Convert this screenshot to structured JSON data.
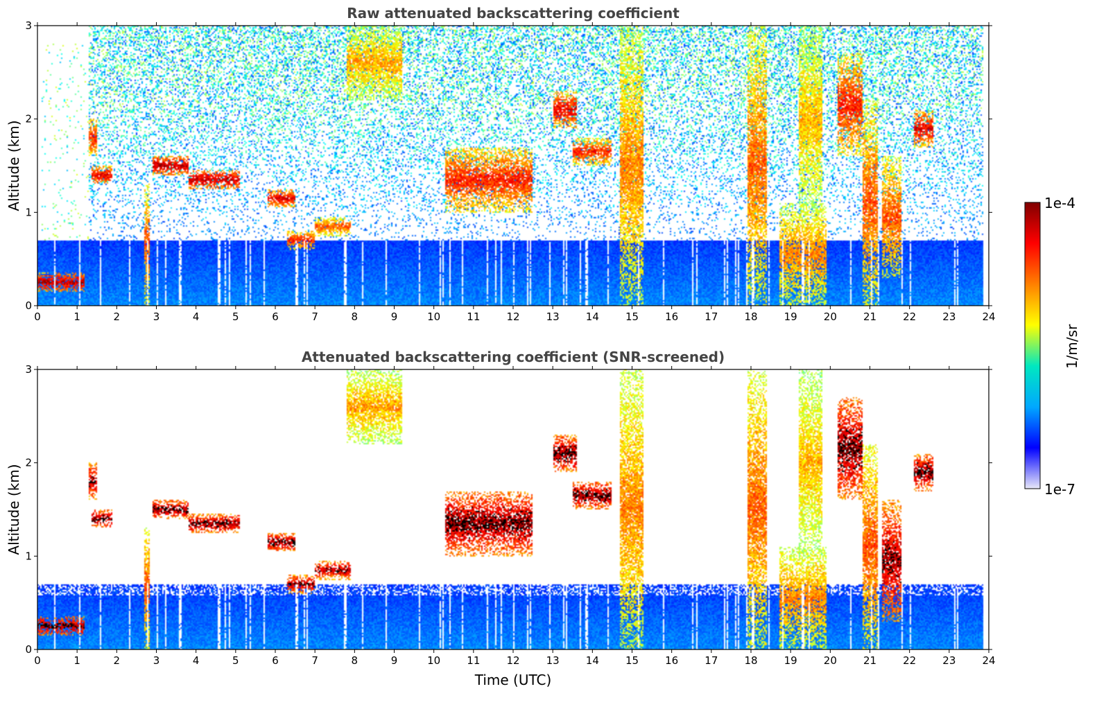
{
  "chart_data": [
    {
      "type": "heatmap",
      "title": "Raw attenuated backscattering coefficient",
      "xlabel": "",
      "ylabel": "Altitude (km)",
      "xlim": [
        0,
        24
      ],
      "ylim": [
        0,
        3
      ],
      "xticks": [
        "0",
        "1",
        "2",
        "3",
        "4",
        "5",
        "6",
        "7",
        "8",
        "9",
        "10",
        "11",
        "12",
        "13",
        "14",
        "15",
        "16",
        "17",
        "18",
        "19",
        "20",
        "21",
        "22",
        "23",
        "24"
      ],
      "yticks": [
        "0",
        "1",
        "2",
        "3"
      ],
      "boundary_layer_top_km": 0.7,
      "noise": "dense",
      "cloud_features": [
        {
          "t0": 0.0,
          "t1": 1.2,
          "z0": 0.15,
          "z1": 0.35,
          "level": 0.95
        },
        {
          "t0": 1.35,
          "t1": 1.9,
          "z0": 1.3,
          "z1": 1.5,
          "level": 0.9
        },
        {
          "t0": 1.3,
          "t1": 1.5,
          "z0": 1.6,
          "z1": 2.0,
          "level": 0.85
        },
        {
          "t0": 2.7,
          "t1": 2.85,
          "z0": 0.0,
          "z1": 1.3,
          "level": 0.8
        },
        {
          "t0": 2.9,
          "t1": 3.8,
          "z0": 1.4,
          "z1": 1.6,
          "level": 0.95
        },
        {
          "t0": 3.8,
          "t1": 5.1,
          "z0": 1.25,
          "z1": 1.45,
          "level": 0.95
        },
        {
          "t0": 5.8,
          "t1": 6.5,
          "z0": 1.05,
          "z1": 1.25,
          "level": 0.9
        },
        {
          "t0": 6.3,
          "t1": 7.0,
          "z0": 0.6,
          "z1": 0.8,
          "level": 0.85
        },
        {
          "t0": 7.0,
          "t1": 7.9,
          "z0": 0.75,
          "z1": 0.95,
          "level": 0.8
        },
        {
          "t0": 7.8,
          "t1": 9.2,
          "z0": 2.2,
          "z1": 3.0,
          "level": 0.72
        },
        {
          "t0": 10.3,
          "t1": 12.5,
          "z0": 1.0,
          "z1": 1.7,
          "level": 0.85
        },
        {
          "t0": 13.0,
          "t1": 13.6,
          "z0": 1.9,
          "z1": 2.3,
          "level": 0.9
        },
        {
          "t0": 13.5,
          "t1": 14.5,
          "z0": 1.5,
          "z1": 1.8,
          "level": 0.85
        },
        {
          "t0": 14.7,
          "t1": 15.3,
          "z0": 0.0,
          "z1": 3.0,
          "level": 0.75
        },
        {
          "t0": 17.9,
          "t1": 18.4,
          "z0": 0.0,
          "z1": 3.0,
          "level": 0.78
        },
        {
          "t0": 18.7,
          "t1": 19.9,
          "z0": 0.0,
          "z1": 1.1,
          "level": 0.75
        },
        {
          "t0": 19.2,
          "t1": 19.8,
          "z0": 1.0,
          "z1": 3.0,
          "level": 0.7
        },
        {
          "t0": 20.2,
          "t1": 20.8,
          "z0": 1.6,
          "z1": 2.7,
          "level": 0.85
        },
        {
          "t0": 20.8,
          "t1": 21.2,
          "z0": 0.0,
          "z1": 2.2,
          "level": 0.8
        },
        {
          "t0": 21.3,
          "t1": 21.8,
          "z0": 0.3,
          "z1": 1.6,
          "level": 0.8
        },
        {
          "t0": 22.1,
          "t1": 22.6,
          "z0": 1.7,
          "z1": 2.1,
          "level": 0.9
        }
      ]
    },
    {
      "type": "heatmap",
      "title": "Attenuated backscattering coefficient (SNR-screened)",
      "xlabel": "Time (UTC)",
      "ylabel": "Altitude (km)",
      "xlim": [
        0,
        24
      ],
      "ylim": [
        0,
        3
      ],
      "xticks": [
        "0",
        "1",
        "2",
        "3",
        "4",
        "5",
        "6",
        "7",
        "8",
        "9",
        "10",
        "11",
        "12",
        "13",
        "14",
        "15",
        "16",
        "17",
        "18",
        "19",
        "20",
        "21",
        "22",
        "23",
        "24"
      ],
      "yticks": [
        "0",
        "1",
        "2",
        "3"
      ],
      "boundary_layer_top_km": 0.7,
      "noise": "screened",
      "cloud_features": [
        {
          "t0": 0.0,
          "t1": 1.2,
          "z0": 0.15,
          "z1": 0.35,
          "level": 0.98
        },
        {
          "t0": 1.35,
          "t1": 1.9,
          "z0": 1.3,
          "z1": 1.5,
          "level": 0.98
        },
        {
          "t0": 1.3,
          "t1": 1.5,
          "z0": 1.6,
          "z1": 2.0,
          "level": 0.95
        },
        {
          "t0": 2.7,
          "t1": 2.85,
          "z0": 0.0,
          "z1": 1.3,
          "level": 0.8
        },
        {
          "t0": 2.9,
          "t1": 3.8,
          "z0": 1.4,
          "z1": 1.6,
          "level": 0.98
        },
        {
          "t0": 3.8,
          "t1": 5.1,
          "z0": 1.25,
          "z1": 1.45,
          "level": 0.98
        },
        {
          "t0": 5.8,
          "t1": 6.5,
          "z0": 1.05,
          "z1": 1.25,
          "level": 0.98
        },
        {
          "t0": 6.3,
          "t1": 7.0,
          "z0": 0.6,
          "z1": 0.8,
          "level": 0.95
        },
        {
          "t0": 7.0,
          "t1": 7.9,
          "z0": 0.75,
          "z1": 0.95,
          "level": 0.95
        },
        {
          "t0": 7.8,
          "t1": 9.2,
          "z0": 2.2,
          "z1": 3.0,
          "level": 0.72
        },
        {
          "t0": 10.3,
          "t1": 12.5,
          "z0": 1.0,
          "z1": 1.7,
          "level": 0.98
        },
        {
          "t0": 13.0,
          "t1": 13.6,
          "z0": 1.9,
          "z1": 2.3,
          "level": 0.98
        },
        {
          "t0": 13.5,
          "t1": 14.5,
          "z0": 1.5,
          "z1": 1.8,
          "level": 0.98
        },
        {
          "t0": 14.7,
          "t1": 15.3,
          "z0": 0.0,
          "z1": 3.0,
          "level": 0.75
        },
        {
          "t0": 17.9,
          "t1": 18.4,
          "z0": 0.0,
          "z1": 3.0,
          "level": 0.78
        },
        {
          "t0": 18.7,
          "t1": 19.9,
          "z0": 0.0,
          "z1": 1.1,
          "level": 0.75
        },
        {
          "t0": 19.2,
          "t1": 19.8,
          "z0": 1.0,
          "z1": 3.0,
          "level": 0.7
        },
        {
          "t0": 20.2,
          "t1": 20.8,
          "z0": 1.6,
          "z1": 2.7,
          "level": 0.98
        },
        {
          "t0": 20.8,
          "t1": 21.2,
          "z0": 0.0,
          "z1": 2.2,
          "level": 0.8
        },
        {
          "t0": 21.3,
          "t1": 21.8,
          "z0": 0.3,
          "z1": 1.6,
          "level": 0.95
        },
        {
          "t0": 22.1,
          "t1": 22.6,
          "z0": 1.7,
          "z1": 2.1,
          "level": 0.98
        }
      ]
    }
  ],
  "colorbar": {
    "label": "1/m/sr",
    "max_label": "1e-4",
    "min_label": "1e-7",
    "colormap": "jet",
    "stops": [
      "#e8e8f8",
      "#0000ff",
      "#00a8ff",
      "#00e8c0",
      "#ffff00",
      "#ff8000",
      "#ff0000",
      "#800000"
    ]
  }
}
